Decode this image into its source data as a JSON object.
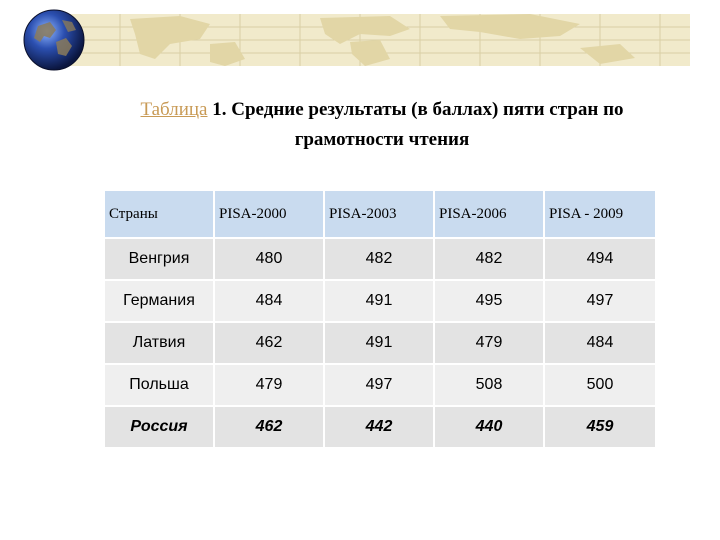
{
  "title": {
    "link_text": "Таблица",
    "line1_rest": " 1. Средние результаты (в баллах) пяти стран по",
    "line2": "грамотности чтения"
  },
  "table": {
    "headers": [
      "Страны",
      "PISA-2000",
      "PISA-2003",
      "PISA-2006",
      "PISA - 2009"
    ],
    "rows": [
      [
        "Венгрия",
        "480",
        "482",
        "482",
        "494"
      ],
      [
        "Германия",
        "484",
        "491",
        "495",
        "497"
      ],
      [
        "Латвия",
        "462",
        "491",
        "479",
        "484"
      ],
      [
        "Польша",
        "479",
        "497",
        "508",
        "500"
      ],
      [
        "Россия",
        "462",
        "442",
        "440",
        "459"
      ]
    ]
  },
  "colors": {
    "banner": "#f1eacb",
    "header_bg": "#c9dbef",
    "row_even": "#e3e3e3",
    "row_odd": "#efefef",
    "link": "#c89a55"
  },
  "icons": [
    "globe-icon",
    "world-map-banner"
  ]
}
